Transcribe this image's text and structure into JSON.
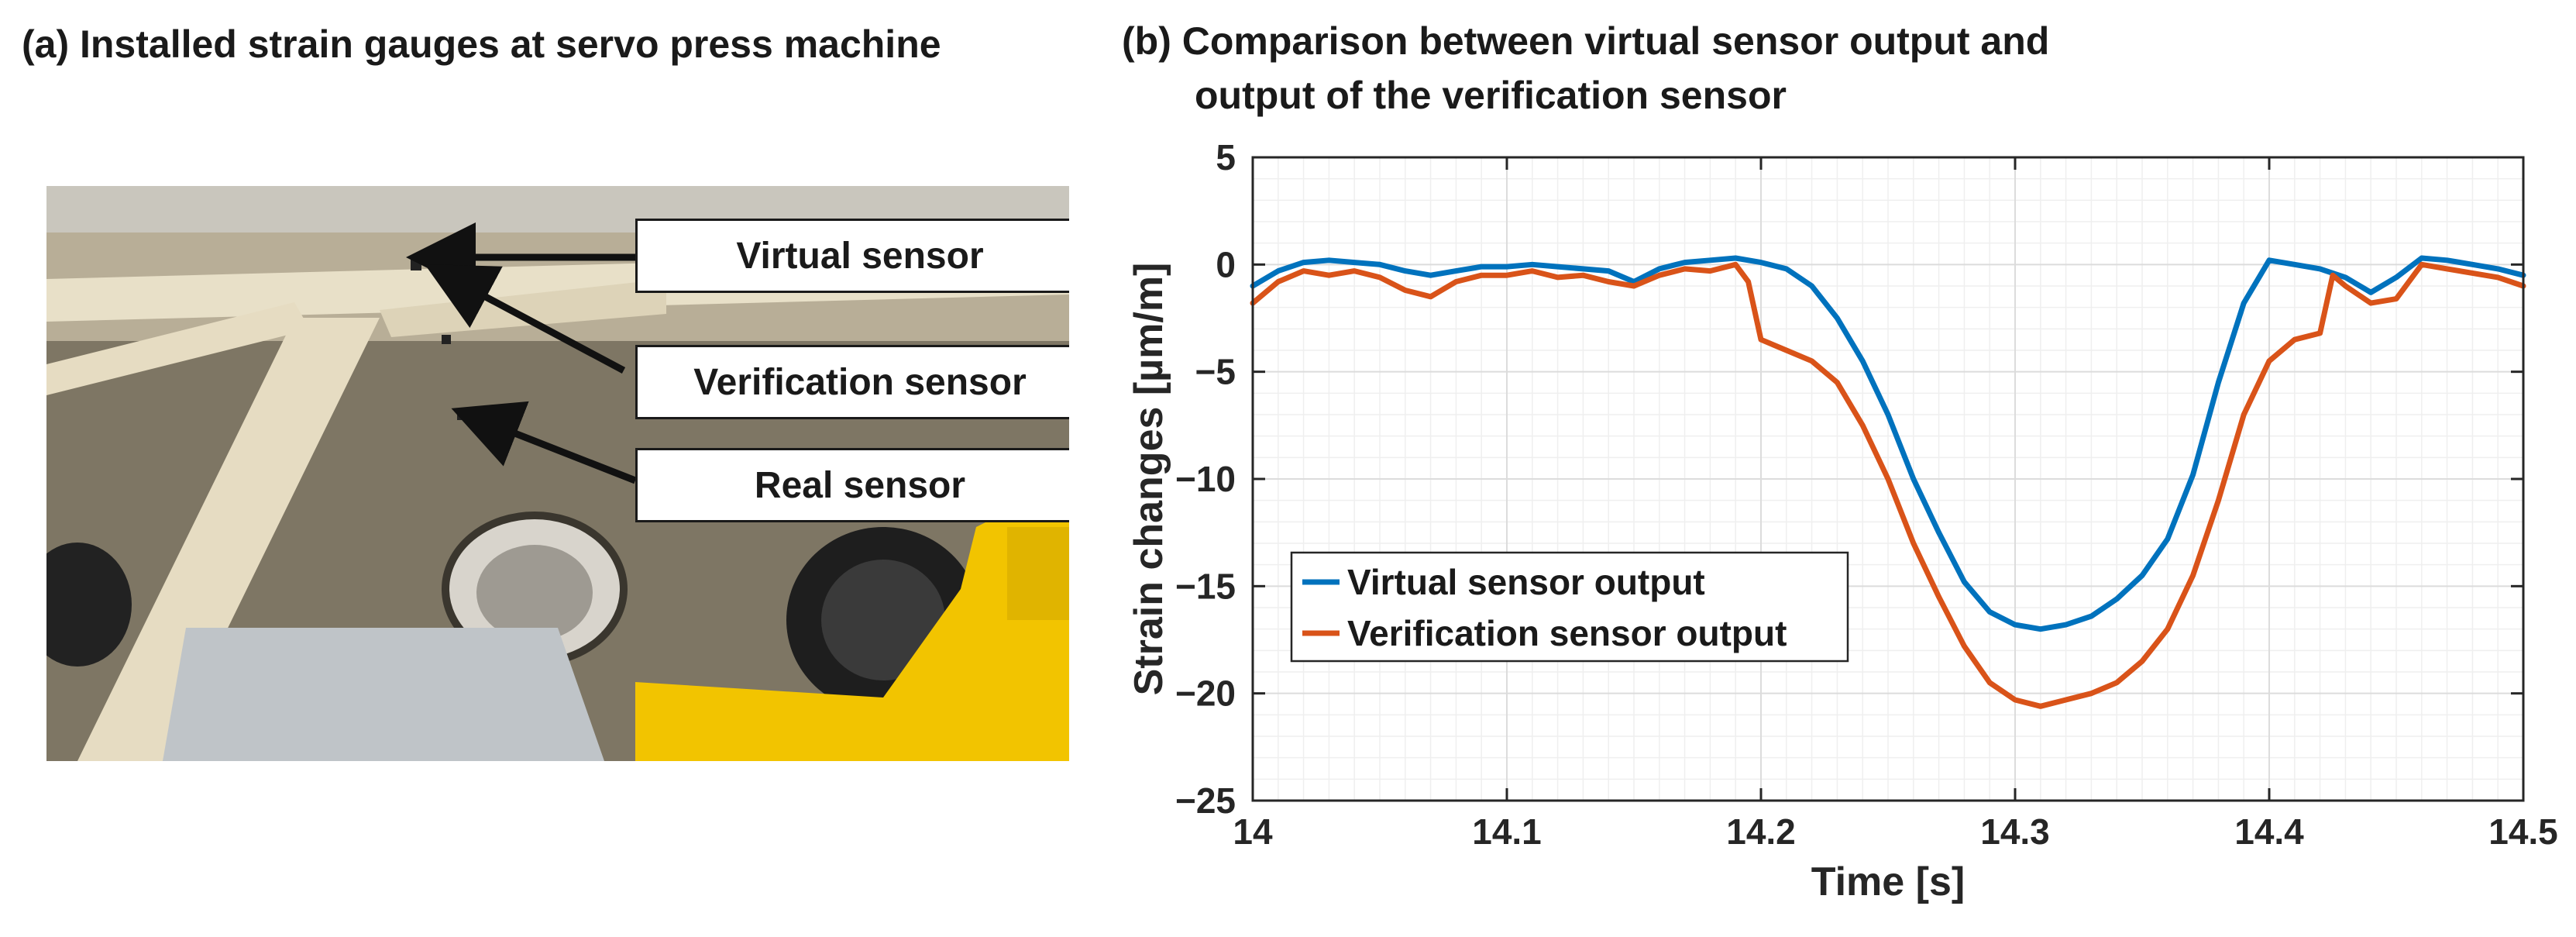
{
  "figure": {
    "panel_a": {
      "title": "(a) Installed strain gauges at servo press machine",
      "callouts": {
        "virtual": "Virtual sensor",
        "verification": "Verification sensor",
        "real": "Real sensor"
      }
    },
    "panel_b": {
      "title_line1": "(b) Comparison between virtual sensor output and",
      "title_line2": "output of the verification sensor"
    }
  },
  "chart_data": {
    "type": "line",
    "title": "(b) Comparison between virtual sensor output and output of the verification sensor",
    "xlabel": "Time [s]",
    "ylabel": "Strain changes [µm/m]",
    "xlim": [
      14,
      14.5
    ],
    "ylim": [
      -25,
      5
    ],
    "xticks": [
      14,
      14.1,
      14.2,
      14.3,
      14.4,
      14.5
    ],
    "xtick_labels": [
      "14",
      "14.1",
      "14.2",
      "14.3",
      "14.4",
      "14.5"
    ],
    "yticks": [
      5,
      0,
      -5,
      -10,
      -15,
      -20,
      -25
    ],
    "ytick_labels": [
      "5",
      "0",
      "−5",
      "−10",
      "−15",
      "−20",
      "−25"
    ],
    "grid": true,
    "minor_grid": true,
    "legend_position": "center-left",
    "series": [
      {
        "name": "Virtual sensor output",
        "color": "#0072BD",
        "x": [
          14.0,
          14.01,
          14.02,
          14.03,
          14.04,
          14.05,
          14.06,
          14.07,
          14.08,
          14.09,
          14.1,
          14.11,
          14.12,
          14.13,
          14.14,
          14.15,
          14.16,
          14.17,
          14.18,
          14.19,
          14.2,
          14.21,
          14.22,
          14.23,
          14.24,
          14.25,
          14.26,
          14.27,
          14.28,
          14.29,
          14.3,
          14.31,
          14.32,
          14.33,
          14.34,
          14.35,
          14.36,
          14.37,
          14.38,
          14.39,
          14.4,
          14.41,
          14.42,
          14.43,
          14.44,
          14.45,
          14.46,
          14.47,
          14.48,
          14.49,
          14.5
        ],
        "y": [
          -1.0,
          -0.3,
          0.1,
          0.2,
          0.1,
          0.0,
          -0.3,
          -0.5,
          -0.3,
          -0.1,
          -0.1,
          0.0,
          -0.1,
          -0.2,
          -0.3,
          -0.8,
          -0.2,
          0.1,
          0.2,
          0.3,
          0.1,
          -0.2,
          -1.0,
          -2.5,
          -4.5,
          -7.0,
          -10.0,
          -12.5,
          -14.8,
          -16.2,
          -16.8,
          -17.0,
          -16.8,
          -16.4,
          -15.6,
          -14.5,
          -12.8,
          -9.8,
          -5.5,
          -1.8,
          0.2,
          0.0,
          -0.2,
          -0.6,
          -1.3,
          -0.6,
          0.3,
          0.2,
          0.0,
          -0.2,
          -0.5
        ]
      },
      {
        "name": "Verification sensor output",
        "color": "#D95319",
        "x": [
          14.0,
          14.01,
          14.02,
          14.03,
          14.04,
          14.05,
          14.06,
          14.07,
          14.08,
          14.09,
          14.1,
          14.11,
          14.12,
          14.13,
          14.14,
          14.15,
          14.16,
          14.17,
          14.18,
          14.19,
          14.195,
          14.2,
          14.21,
          14.22,
          14.23,
          14.24,
          14.25,
          14.26,
          14.27,
          14.28,
          14.29,
          14.3,
          14.31,
          14.32,
          14.33,
          14.34,
          14.35,
          14.36,
          14.37,
          14.38,
          14.39,
          14.4,
          14.41,
          14.42,
          14.425,
          14.43,
          14.44,
          14.45,
          14.46,
          14.47,
          14.48,
          14.49,
          14.5
        ],
        "y": [
          -1.8,
          -0.8,
          -0.3,
          -0.5,
          -0.3,
          -0.6,
          -1.2,
          -1.5,
          -0.8,
          -0.5,
          -0.5,
          -0.3,
          -0.6,
          -0.5,
          -0.8,
          -1.0,
          -0.5,
          -0.2,
          -0.3,
          0.0,
          -0.8,
          -3.5,
          -4.0,
          -4.5,
          -5.5,
          -7.5,
          -10.0,
          -13.0,
          -15.5,
          -17.8,
          -19.5,
          -20.3,
          -20.6,
          -20.3,
          -20.0,
          -19.5,
          -18.5,
          -17.0,
          -14.5,
          -11.0,
          -7.0,
          -4.5,
          -3.5,
          -3.2,
          -0.5,
          -1.0,
          -1.8,
          -1.6,
          0.0,
          -0.2,
          -0.4,
          -0.6,
          -1.0
        ]
      }
    ]
  }
}
